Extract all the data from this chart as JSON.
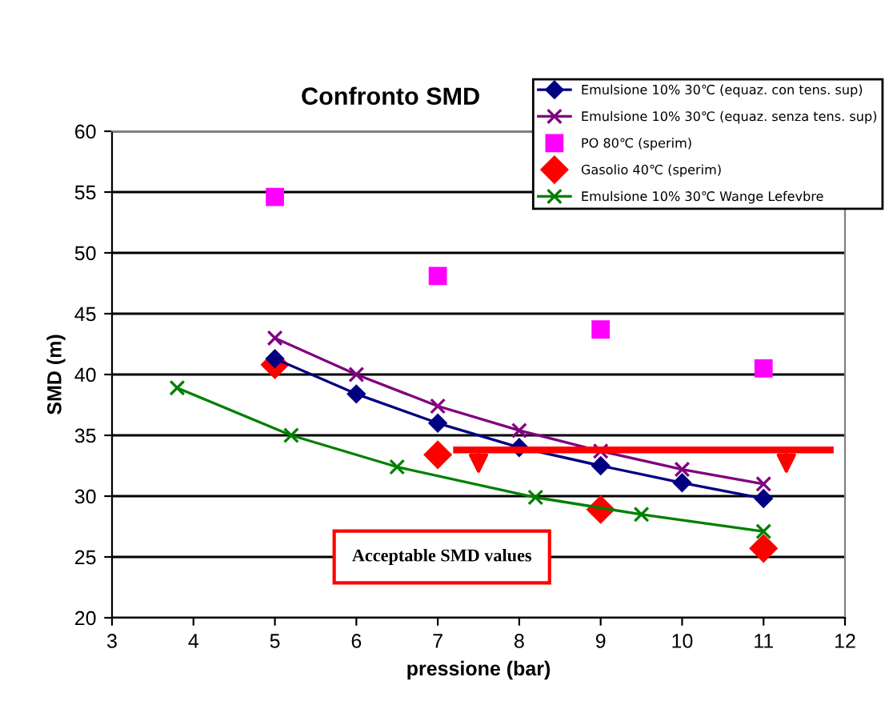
{
  "chart_data": {
    "type": "line",
    "title": "Confronto SMD",
    "xlabel": "pressione (bar)",
    "ylabel": "SMD (m)",
    "xlim": [
      3,
      12
    ],
    "xticks": [
      3,
      4,
      5,
      6,
      7,
      8,
      9,
      10,
      11,
      12
    ],
    "ylim": [
      20,
      60
    ],
    "yticks": [
      20,
      25,
      30,
      35,
      40,
      45,
      50,
      55,
      60
    ],
    "grid": "y",
    "legend": "top right",
    "series": [
      {
        "name": "Emulsione 10% 30℃ (equaz. con tens. sup)",
        "marker": "diamond",
        "color": "#000080",
        "x": [
          5,
          6,
          7,
          8,
          9,
          10,
          11
        ],
        "values": [
          41.3,
          38.4,
          36.0,
          34.0,
          32.5,
          31.1,
          29.8
        ]
      },
      {
        "name": "Emulsione 10% 30℃ (equaz. senza tens. sup)",
        "marker": "cross",
        "color": "#800080",
        "x": [
          5,
          6,
          7,
          8,
          9,
          10,
          11
        ],
        "values": [
          43.0,
          40.0,
          37.4,
          35.4,
          33.7,
          32.2,
          31.0
        ]
      },
      {
        "name": "PO 80℃ (sperim)",
        "type": "scatter",
        "marker": "square",
        "color": "#ff00ff",
        "x": [
          5,
          7,
          9,
          11
        ],
        "values": [
          54.6,
          48.1,
          43.7,
          40.5
        ]
      },
      {
        "name": "Gasolio 40℃ (sperim)",
        "type": "scatter",
        "marker": "diamond",
        "color": "#ff0000",
        "x": [
          5,
          7,
          9,
          11
        ],
        "values": [
          40.8,
          33.4,
          28.9,
          25.7
        ]
      },
      {
        "name": "Emulsione 10% 30℃ Wange Lefevbre",
        "marker": "cross",
        "color": "#008000",
        "x": [
          3.8,
          5.2,
          6.5,
          8.2,
          9.5,
          11
        ],
        "values": [
          38.9,
          35.0,
          32.4,
          29.9,
          28.5,
          27.1
        ]
      }
    ],
    "ref_lines": [
      {
        "axis": "y",
        "value": 33.8,
        "color": "#ff0000"
      }
    ],
    "annotations": [
      "Acceptable SMD values"
    ]
  }
}
